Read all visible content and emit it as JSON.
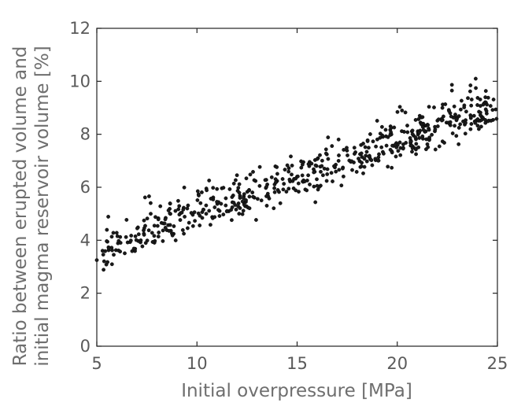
{
  "chart_data": {
    "type": "scatter",
    "title": "",
    "xlabel": "Initial overpressure [MPa]",
    "ylabel_lines": [
      "Ratio between erupted volume and",
      "initial magma reservoir volume [%]"
    ],
    "xlim": [
      5,
      25
    ],
    "ylim": [
      0,
      12
    ],
    "xticks": [
      "5",
      "10",
      "15",
      "20",
      "25"
    ],
    "yticks": [
      "0",
      "2",
      "4",
      "6",
      "8",
      "10",
      "12"
    ],
    "grid": false,
    "legend": "none",
    "point_count": 600,
    "trend_estimate": {
      "x": [
        5,
        10,
        15,
        20,
        25
      ],
      "y": [
        3.6,
        5.0,
        6.3,
        7.7,
        9.0
      ]
    },
    "marker_color": "#1a1a1a"
  }
}
